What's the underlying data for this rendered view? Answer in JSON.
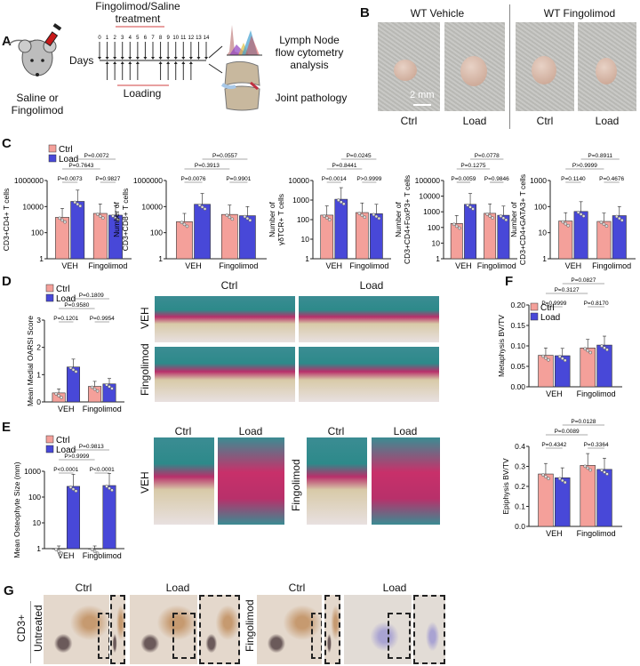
{
  "panels": {
    "A": "A",
    "B": "B",
    "C": "C",
    "D": "D",
    "E": "E",
    "F": "F",
    "G": "G"
  },
  "panelA": {
    "treatment": "Fingolimod/Saline",
    "treatment2": "treatment",
    "days_label": "Days",
    "days": [
      "0",
      "1",
      "2",
      "3",
      "4",
      "5",
      "6",
      "7",
      "8",
      "9",
      "10",
      "11",
      "12",
      "13",
      "14"
    ],
    "loading_days": [
      1,
      2,
      3,
      4,
      5,
      8,
      9,
      10,
      11,
      12
    ],
    "loading": "Loading",
    "mouse_label1": "Saline or",
    "mouse_label2": "Fingolimod",
    "out1a": "Lymph Node",
    "out1b": "flow cytometry",
    "out1c": "analysis",
    "out2": "Joint pathology"
  },
  "panelB": {
    "group1": "WT Vehicle",
    "group2": "WT Fingolimod",
    "cols": [
      "Ctrl",
      "Load",
      "Ctrl",
      "Load"
    ],
    "scale_bar": "2 mm"
  },
  "panelD": {
    "cols": [
      "Ctrl",
      "Load"
    ],
    "rows": [
      "VEH",
      "Fingolimod"
    ]
  },
  "panelE": {
    "cols": [
      "Ctrl",
      "Load",
      "Ctrl",
      "Load"
    ],
    "rows": [
      "VEH",
      "Fingolimod"
    ]
  },
  "panelG": {
    "cols": [
      "Ctrl",
      "Load",
      "Ctrl",
      "Load"
    ],
    "marker": "CD3+",
    "rows": [
      "Untreated",
      "Fingolimod"
    ]
  },
  "colors": {
    "ctrl": "#f4a09a",
    "load": "#4848d8"
  },
  "chart_data": [
    {
      "panel": "C",
      "type": "bar",
      "ylabel": [
        "Number of",
        "CD3+CD4+ T cells"
      ],
      "scale": "log",
      "ylim": [
        1,
        1000000
      ],
      "yticks": [
        "1",
        "100",
        "10000",
        "1000000"
      ],
      "categories": [
        "VEH",
        "Fingolimod"
      ],
      "legend": true,
      "series": [
        {
          "name": "Ctrl",
          "values": [
            1500,
            3000
          ]
        },
        {
          "name": "Load",
          "values": [
            25000,
            2200
          ]
        }
      ],
      "pvalues": [
        {
          "pair": "veh",
          "label": "P=0.0073"
        },
        {
          "pair": "fingo",
          "label": "P=0.9827"
        },
        {
          "pair": "ctrl",
          "label": "P=0.7643"
        },
        {
          "pair": "load",
          "label": "P=0.0072"
        }
      ]
    },
    {
      "panel": "C",
      "type": "bar",
      "ylabel": [
        "Number of",
        "CD3+CD8+ T cells"
      ],
      "scale": "log",
      "ylim": [
        1,
        1000000
      ],
      "yticks": [
        "1",
        "100",
        "10000",
        "1000000"
      ],
      "categories": [
        "VEH",
        "Fingolimod"
      ],
      "legend": false,
      "series": [
        {
          "name": "Ctrl",
          "values": [
            700,
            2500
          ]
        },
        {
          "name": "Load",
          "values": [
            15000,
            2000
          ]
        }
      ],
      "pvalues": [
        {
          "pair": "veh",
          "label": "P=0.0076"
        },
        {
          "pair": "fingo",
          "label": "P=0.9901"
        },
        {
          "pair": "ctrl",
          "label": "P=0.3913"
        },
        {
          "pair": "load",
          "label": "P=0.0557"
        }
      ]
    },
    {
      "panel": "C",
      "type": "bar",
      "ylabel": [
        "Number of",
        "γδTCR+ T cells"
      ],
      "scale": "log",
      "ylim": [
        1,
        10000
      ],
      "yticks": [
        "1",
        "10",
        "100",
        "1000",
        "10000"
      ],
      "categories": [
        "VEH",
        "Fingolimod"
      ],
      "legend": false,
      "series": [
        {
          "name": "Ctrl",
          "values": [
            170,
            230
          ]
        },
        {
          "name": "Load",
          "values": [
            1100,
            200
          ]
        }
      ],
      "pvalues": [
        {
          "pair": "veh",
          "label": "P=0.0014"
        },
        {
          "pair": "fingo",
          "label": "P>0.9999"
        },
        {
          "pair": "ctrl",
          "label": "P=0.8441"
        },
        {
          "pair": "load",
          "label": "P=0.0245"
        }
      ]
    },
    {
      "panel": "C",
      "type": "bar",
      "ylabel": [
        "Number of",
        "CD3+CD4+FoxP3+ T cells"
      ],
      "scale": "log",
      "ylim": [
        1,
        100000
      ],
      "yticks": [
        "1",
        "10",
        "100",
        "1000",
        "10000",
        "100000"
      ],
      "categories": [
        "VEH",
        "Fingolimod"
      ],
      "legend": false,
      "series": [
        {
          "name": "Ctrl",
          "values": [
            180,
            800
          ]
        },
        {
          "name": "Load",
          "values": [
            3000,
            600
          ]
        }
      ],
      "pvalues": [
        {
          "pair": "veh",
          "label": "P=0.0059"
        },
        {
          "pair": "fingo",
          "label": "P=0.9846"
        },
        {
          "pair": "ctrl",
          "label": "P=0.1275"
        },
        {
          "pair": "load",
          "label": "P=0.0778"
        }
      ]
    },
    {
      "panel": "C",
      "type": "bar",
      "ylabel": [
        "Number of",
        "CD3+CD4+GATA3+ T cells"
      ],
      "scale": "log",
      "ylim": [
        1,
        1000
      ],
      "yticks": [
        "1",
        "10",
        "100",
        "1000"
      ],
      "categories": [
        "VEH",
        "Fingolimod"
      ],
      "legend": false,
      "series": [
        {
          "name": "Ctrl",
          "values": [
            28,
            27
          ]
        },
        {
          "name": "Load",
          "values": [
            65,
            45
          ]
        }
      ],
      "pvalues": [
        {
          "pair": "veh",
          "label": "P=0.1140"
        },
        {
          "pair": "fingo",
          "label": "P=0.4676"
        },
        {
          "pair": "ctrl",
          "label": "P>0.9999"
        },
        {
          "pair": "load",
          "label": "P=0.8911"
        }
      ]
    },
    {
      "panel": "D",
      "type": "bar",
      "ylabel": [
        "Mean Medial OARSI Score"
      ],
      "scale": "linear",
      "ylim": [
        0,
        3
      ],
      "yticks": [
        "0",
        "1",
        "2",
        "3"
      ],
      "categories": [
        "VEH",
        "Fingolimod"
      ],
      "legend": true,
      "series": [
        {
          "name": "Ctrl",
          "values": [
            0.33,
            0.57
          ]
        },
        {
          "name": "Load",
          "values": [
            1.28,
            0.66
          ]
        }
      ],
      "pvalues": [
        {
          "pair": "veh",
          "label": "P=0.1201"
        },
        {
          "pair": "fingo",
          "label": "P=0.9954"
        },
        {
          "pair": "ctrl",
          "label": "P=0.9580"
        },
        {
          "pair": "load",
          "label": "P=0.1809"
        }
      ]
    },
    {
      "panel": "E",
      "type": "bar",
      "ylabel": [
        "Mean Osteophyte Size (mm)"
      ],
      "scale": "log",
      "ylim": [
        1,
        1000
      ],
      "yticks": [
        "1",
        "10",
        "100",
        "1000"
      ],
      "categories": [
        "VEH",
        "Fingolimod"
      ],
      "legend": true,
      "series": [
        {
          "name": "Ctrl",
          "values": [
            1,
            1
          ]
        },
        {
          "name": "Load",
          "values": [
            260,
            280
          ]
        }
      ],
      "pvalues": [
        {
          "pair": "veh",
          "label": "P<0.0001"
        },
        {
          "pair": "fingo",
          "label": "P<0.0001"
        },
        {
          "pair": "ctrl",
          "label": "P>0.9999"
        },
        {
          "pair": "load",
          "label": "P=0.9813"
        }
      ]
    },
    {
      "panel": "F",
      "type": "bar",
      "ylabel": [
        "Metaphysis BV/TV"
      ],
      "scale": "linear",
      "ylim": [
        0,
        0.2
      ],
      "yticks": [
        "0.00",
        "0.05",
        "0.10",
        "0.15",
        "0.20"
      ],
      "categories": [
        "VEH",
        "Fingolimod"
      ],
      "legend": true,
      "series": [
        {
          "name": "Ctrl",
          "values": [
            0.077,
            0.095
          ]
        },
        {
          "name": "Load",
          "values": [
            0.076,
            0.102
          ]
        }
      ],
      "pvalues": [
        {
          "pair": "veh",
          "label": "P=0.9999"
        },
        {
          "pair": "fingo",
          "label": "P=0.8170"
        },
        {
          "pair": "ctrl",
          "label": "P=0.3127"
        },
        {
          "pair": "load",
          "label": "P=0.0827"
        }
      ]
    },
    {
      "panel": "F",
      "type": "bar",
      "ylabel": [
        "Epiphysis BV/TV"
      ],
      "scale": "linear",
      "ylim": [
        0,
        0.4
      ],
      "yticks": [
        "0.0",
        "0.1",
        "0.2",
        "0.3",
        "0.4"
      ],
      "categories": [
        "VEH",
        "Fingolimod"
      ],
      "legend": false,
      "series": [
        {
          "name": "Ctrl",
          "values": [
            0.262,
            0.305
          ]
        },
        {
          "name": "Load",
          "values": [
            0.243,
            0.285
          ]
        }
      ],
      "pvalues": [
        {
          "pair": "veh",
          "label": "P=0.4342"
        },
        {
          "pair": "fingo",
          "label": "P=0.3364"
        },
        {
          "pair": "ctrl",
          "label": "P=0.0089"
        },
        {
          "pair": "load",
          "label": "P=0.0128"
        }
      ]
    }
  ]
}
